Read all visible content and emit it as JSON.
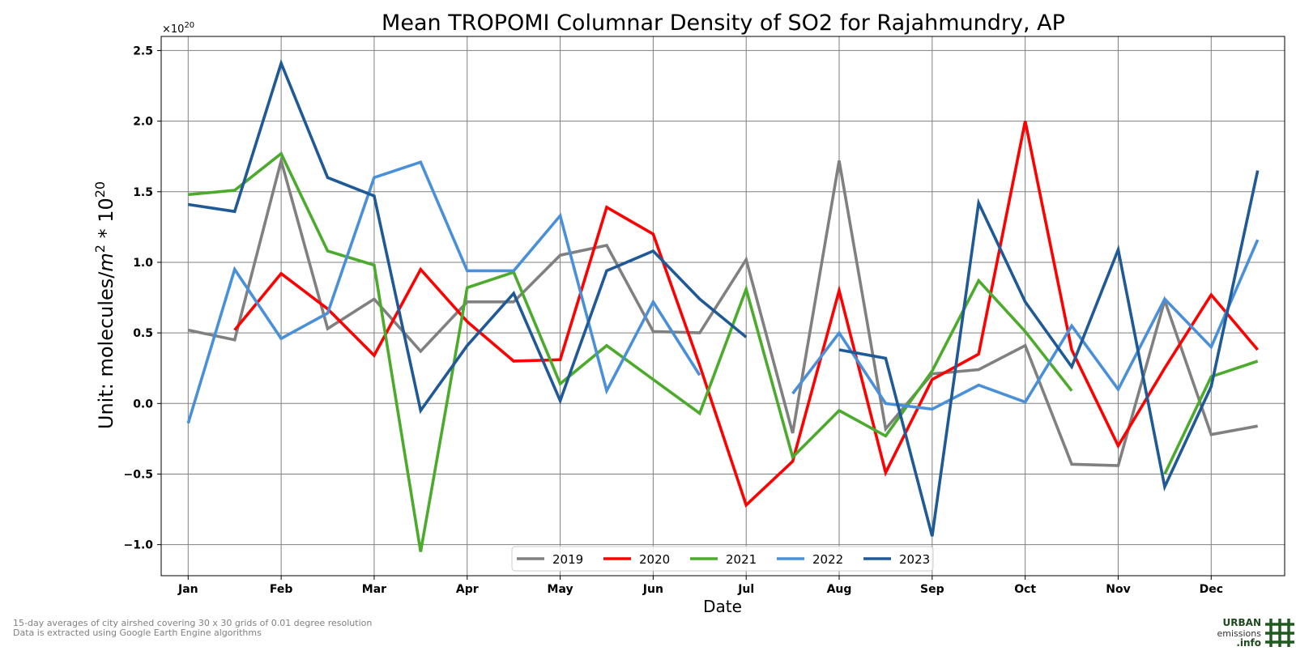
{
  "chart_data": {
    "type": "line",
    "title": "Mean TROPOMI Columnar Density of SO2 for Rajahmundry, AP",
    "xlabel": "Date",
    "ylabel_prefix": "Unit: molecules/",
    "ylabel_m": "m",
    "ylabel_m_sup": "2",
    "ylabel_mid": " * 10",
    "ylabel_sup": "20",
    "offset_base": "×10",
    "offset_sup": "20",
    "x_tick_labels": [
      "Jan",
      "Feb",
      "Mar",
      "Apr",
      "May",
      "Jun",
      "Jul",
      "Aug",
      "Sep",
      "Oct",
      "Nov",
      "Dec"
    ],
    "y_ticks": [
      2.5,
      2.0,
      1.5,
      1.0,
      0.5,
      0.0,
      -0.5,
      -1.0
    ],
    "y_tick_labels": [
      "2.5",
      "2.0",
      "1.5",
      "1.0",
      "0.5",
      "0.0",
      "−0.5",
      "−1.0"
    ],
    "ylim": [
      -1.22,
      2.6
    ],
    "xlim": [
      -0.58,
      23.58
    ],
    "x": [
      "Jan 1",
      "Jan 16",
      "Feb 1",
      "Feb 16",
      "Mar 1",
      "Mar 16",
      "Apr 1",
      "Apr 16",
      "May 1",
      "May 16",
      "Jun 1",
      "Jun 16",
      "Jul 1",
      "Jul 16",
      "Aug 1",
      "Aug 16",
      "Sep 1",
      "Sep 16",
      "Oct 1",
      "Oct 16",
      "Nov 1",
      "Nov 16",
      "Dec 1",
      "Dec 16"
    ],
    "grid": true,
    "legend_position": "bottom-center",
    "series": [
      {
        "name": "2019",
        "color": "#808080",
        "values": [
          0.52,
          0.45,
          1.72,
          0.53,
          0.74,
          0.37,
          0.72,
          0.72,
          1.05,
          1.12,
          0.51,
          0.5,
          1.02,
          -0.21,
          1.72,
          -0.18,
          0.21,
          0.24,
          0.41,
          -0.43,
          -0.44,
          0.73,
          -0.22,
          -0.16
        ]
      },
      {
        "name": "2020",
        "color": "#ff0000",
        "values": [
          null,
          0.52,
          0.92,
          0.67,
          0.34,
          0.95,
          0.58,
          0.3,
          0.31,
          1.39,
          1.2,
          0.27,
          -0.72,
          -0.41,
          0.8,
          -0.49,
          0.17,
          0.35,
          2.0,
          0.38,
          -0.3,
          0.25,
          0.77,
          0.38
        ]
      },
      {
        "name": "2021",
        "color": "#4caa2c",
        "values": [
          1.48,
          1.51,
          1.77,
          1.08,
          0.98,
          -1.05,
          0.82,
          0.93,
          0.14,
          0.41,
          0.17,
          -0.07,
          0.81,
          -0.38,
          -0.05,
          -0.23,
          0.23,
          0.87,
          0.51,
          0.09,
          null,
          -0.5,
          0.19,
          0.3
        ]
      },
      {
        "name": "2022",
        "color": "#4a90d9",
        "values": [
          -0.14,
          0.95,
          0.46,
          0.64,
          1.6,
          1.71,
          0.94,
          0.94,
          1.33,
          0.09,
          0.72,
          0.2,
          null,
          0.07,
          0.5,
          0.0,
          -0.04,
          0.13,
          0.01,
          0.55,
          0.1,
          0.74,
          0.4,
          1.16
        ]
      },
      {
        "name": "2023",
        "color": "#1f5a96",
        "values": [
          1.41,
          1.36,
          2.41,
          1.6,
          1.47,
          -0.05,
          0.41,
          0.78,
          0.02,
          0.94,
          1.08,
          0.74,
          0.47,
          null,
          0.38,
          0.32,
          -0.94,
          1.42,
          0.72,
          0.26,
          1.09,
          -0.59,
          0.12,
          1.65
        ]
      }
    ]
  },
  "footer": {
    "note_line1": "15-day averages of city airshed covering 30 x 30 grids of 0.01 degree resolution",
    "note_line2": "Data is extracted using Google Earth Engine algorithms"
  },
  "logo": {
    "line1": "URBAN",
    "line2": "emissions",
    "line3": ".info"
  }
}
